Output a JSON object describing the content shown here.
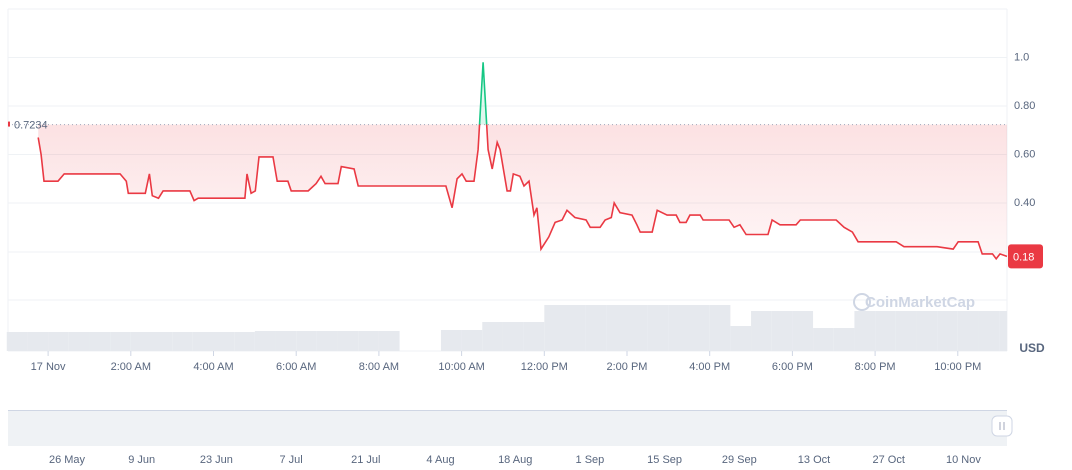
{
  "chart_data": {
    "type": "line",
    "x": [
      -0.24,
      -0.17,
      -0.1,
      0.24,
      0.39,
      1.74,
      1.89,
      1.94,
      2.35,
      2.45,
      2.52,
      2.67,
      2.78,
      3.43,
      3.53,
      3.63,
      4.76,
      4.81,
      4.91,
      5.01,
      5.1,
      5.44,
      5.54,
      5.8,
      5.88,
      6.29,
      6.48,
      6.6,
      6.7,
      7.01,
      7.09,
      7.4,
      7.5,
      9.62,
      9.77,
      9.89,
      10.01,
      10.11,
      10.3,
      10.4,
      10.52,
      10.64,
      10.74,
      10.86,
      10.93,
      11.03,
      11.1,
      11.18,
      11.25,
      11.41,
      11.51,
      11.63,
      11.75,
      11.82,
      11.92,
      12.11,
      12.26,
      12.43,
      12.55,
      12.74,
      13.01,
      13.11,
      13.35,
      13.47,
      13.62,
      13.69,
      13.83,
      14.12,
      14.24,
      14.32,
      14.61,
      14.73,
      14.97,
      15.19,
      15.28,
      15.43,
      15.52,
      15.77,
      15.84,
      16.47,
      16.59,
      16.73,
      16.88,
      17.41,
      17.51,
      17.7,
      18.09,
      18.19,
      19.06,
      19.25,
      19.45,
      19.59,
      20.51,
      20.7,
      21.5,
      21.89,
      22.01,
      22.49,
      22.59,
      22.84,
      22.93,
      23.02,
      23.19
    ],
    "series": [
      {
        "name": "Price",
        "color": "#ea3943",
        "color_above": "#16c784",
        "values": [
          0.67,
          0.6,
          0.49,
          0.49,
          0.52,
          0.52,
          0.49,
          0.44,
          0.44,
          0.52,
          0.43,
          0.42,
          0.45,
          0.45,
          0.41,
          0.42,
          0.42,
          0.52,
          0.44,
          0.45,
          0.59,
          0.59,
          0.49,
          0.49,
          0.45,
          0.45,
          0.48,
          0.51,
          0.48,
          0.48,
          0.55,
          0.54,
          0.47,
          0.47,
          0.38,
          0.5,
          0.52,
          0.49,
          0.49,
          0.62,
          0.98,
          0.62,
          0.54,
          0.65,
          0.62,
          0.52,
          0.45,
          0.45,
          0.52,
          0.51,
          0.47,
          0.49,
          0.35,
          0.38,
          0.21,
          0.26,
          0.32,
          0.33,
          0.37,
          0.34,
          0.33,
          0.3,
          0.3,
          0.33,
          0.34,
          0.4,
          0.36,
          0.35,
          0.31,
          0.28,
          0.28,
          0.37,
          0.35,
          0.35,
          0.32,
          0.32,
          0.35,
          0.35,
          0.33,
          0.33,
          0.3,
          0.31,
          0.27,
          0.27,
          0.33,
          0.31,
          0.31,
          0.33,
          0.33,
          0.3,
          0.28,
          0.24,
          0.24,
          0.22,
          0.22,
          0.21,
          0.24,
          0.24,
          0.19,
          0.19,
          0.17,
          0.19,
          0.18
        ]
      }
    ],
    "reference_price": 0.7234,
    "current_price": 0.18,
    "xlim": [
      -0.97,
      23.19
    ],
    "ylim": [
      0,
      1.2
    ],
    "xticks": [
      {
        "value": 0,
        "label": "17 Nov"
      },
      {
        "value": 2,
        "label": "2:00 AM"
      },
      {
        "value": 4,
        "label": "4:00 AM"
      },
      {
        "value": 6,
        "label": "6:00 AM"
      },
      {
        "value": 8,
        "label": "8:00 AM"
      },
      {
        "value": 10,
        "label": "10:00 AM"
      },
      {
        "value": 12,
        "label": "12:00 PM"
      },
      {
        "value": 14,
        "label": "2:00 PM"
      },
      {
        "value": 16,
        "label": "4:00 PM"
      },
      {
        "value": 18,
        "label": "6:00 PM"
      },
      {
        "value": 20,
        "label": "8:00 PM"
      },
      {
        "value": 22,
        "label": "10:00 PM"
      }
    ],
    "yticks": [
      {
        "value": 1,
        "label": "1.0"
      },
      {
        "value": 0.8,
        "label": "0.80"
      },
      {
        "value": 0.6,
        "label": "0.60"
      },
      {
        "value": 0.4,
        "label": "0.40"
      }
    ],
    "y_unit": "USD",
    "watermark": "CoinMarketCap",
    "volume": {
      "color": "#e6e9ee",
      "x": [
        -1,
        -0.5,
        0,
        0.5,
        1,
        1.5,
        2,
        2.5,
        3,
        3.5,
        4,
        4.5,
        5,
        5.5,
        6,
        6.5,
        7,
        7.5,
        8,
        8.5,
        9,
        9.5,
        10,
        10.5,
        11,
        11.5,
        12,
        12.5,
        13,
        13.5,
        14,
        14.5,
        15,
        15.5,
        16,
        16.5,
        17,
        17.5,
        18,
        18.5,
        19,
        19.5,
        20,
        20.5,
        21,
        21.5,
        22,
        22.5,
        23
      ],
      "values": [
        19,
        19,
        19,
        19,
        19,
        19,
        19,
        19,
        19,
        19,
        19,
        19,
        20,
        20,
        20,
        20,
        20,
        20,
        20,
        0,
        0,
        21,
        21,
        29,
        29,
        29,
        46,
        46,
        46,
        46,
        46,
        46,
        46,
        46,
        46,
        25,
        40,
        40,
        40,
        23,
        23,
        40,
        40,
        40,
        40,
        40,
        40,
        40,
        40
      ],
      "ylim": [
        0,
        50
      ]
    },
    "navigator": {
      "labels": [
        "26 May",
        "9 Jun",
        "23 Jun",
        "7 Jul",
        "21 Jul",
        "4 Aug",
        "18 Aug",
        "1 Sep",
        "15 Sep",
        "29 Sep",
        "13 Oct",
        "27 Oct",
        "10 Nov"
      ]
    }
  }
}
